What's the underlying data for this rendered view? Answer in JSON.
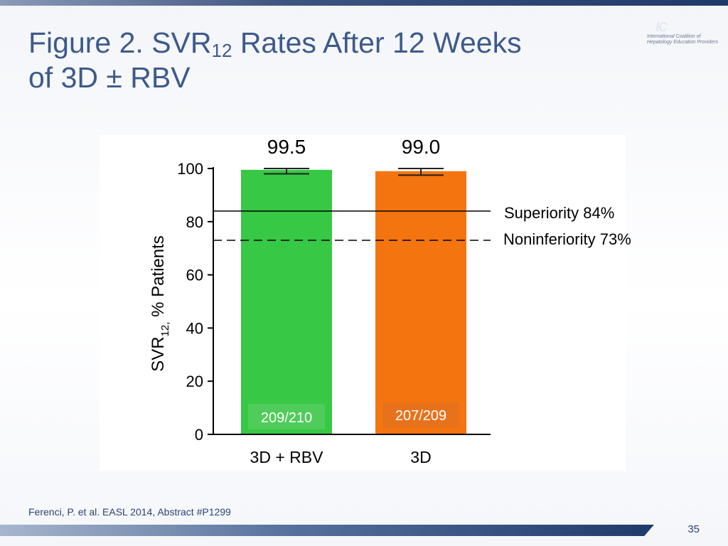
{
  "title": {
    "prefix": "Figure 2. SVR",
    "subscript": "12",
    "suffix": " Rates After 12 Weeks",
    "line2": "of 3D ± RBV"
  },
  "logo": {
    "text": "International Coalition of Hepatology Education Providers"
  },
  "chart_data": {
    "type": "bar",
    "categories": [
      "3D + RBV",
      "3D"
    ],
    "values": [
      99.5,
      99.0
    ],
    "value_labels": [
      "99.5",
      "99.0"
    ],
    "count_labels": [
      "209/210",
      "207/209"
    ],
    "colors": [
      "#37c846",
      "#f4750f"
    ],
    "count_box_colors": [
      "#4fcc5a",
      "#e8721c"
    ],
    "ylabel_prefix": "SVR",
    "ylabel_subscript": "12,",
    "ylabel_suffix": " % Patients",
    "ylim": [
      0,
      100
    ],
    "yticks": [
      0,
      20,
      40,
      60,
      80,
      100
    ],
    "reference_lines": [
      {
        "value": 84,
        "label": "Superiority 84%",
        "style": "solid"
      },
      {
        "value": 73,
        "label": "Noninferiority 73%",
        "style": "dashed"
      }
    ],
    "error_bars": [
      {
        "low": 98.0,
        "high": 100
      },
      {
        "low": 97.5,
        "high": 100
      }
    ]
  },
  "footer": {
    "citation": "Ferenci, P. et al. EASL 2014, Abstract #P1299",
    "page_number": "35"
  }
}
